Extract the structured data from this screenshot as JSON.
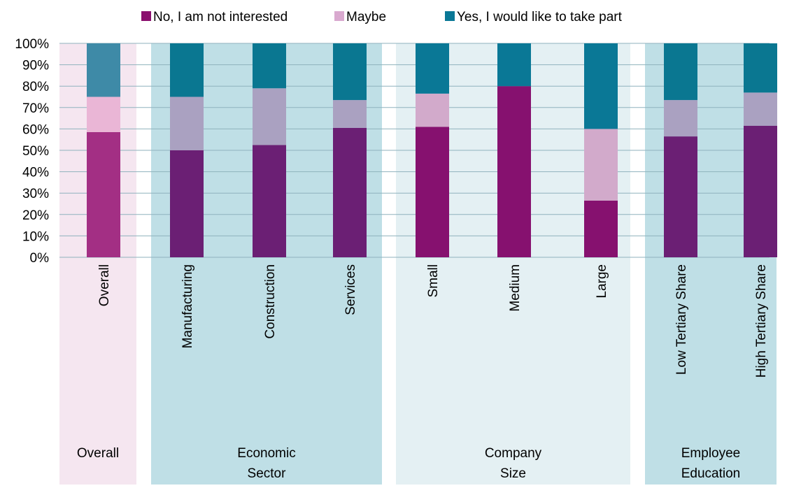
{
  "chart_data": {
    "type": "bar",
    "stacked": true,
    "y_unit": "percent",
    "ylim": [
      0,
      100
    ],
    "yticks": [
      "0%",
      "10%",
      "20%",
      "30%",
      "40%",
      "50%",
      "60%",
      "70%",
      "80%",
      "90%",
      "100%"
    ],
    "categories": [
      "Overall",
      "Manufacturing",
      "Construction",
      "Services",
      "Small",
      "Medium",
      "Large",
      "Low Tertiary Share",
      "High Tertiary Share"
    ],
    "groups": [
      {
        "label_line1": "Overall",
        "label_line2": "",
        "members": [
          "Overall"
        ],
        "band_color": "#f5e6f0"
      },
      {
        "label_line1": "Economic",
        "label_line2": "Sector",
        "members": [
          "Manufacturing",
          "Construction",
          "Services"
        ],
        "band_color": "#bfdfe6"
      },
      {
        "label_line1": "Company",
        "label_line2": "Size",
        "members": [
          "Small",
          "Medium",
          "Large"
        ],
        "band_color": "#e4f0f3"
      },
      {
        "label_line1": "Employee",
        "label_line2": "Education",
        "members": [
          "Low Tertiary Share",
          "High Tertiary Share"
        ],
        "band_color": "#bfdfe6"
      }
    ],
    "series": [
      {
        "name": "No, I am not interested",
        "legend_color": "#8a0f6e",
        "values": [
          58.5,
          50,
          52.5,
          60.5,
          61,
          80,
          26.5,
          56.5,
          61.5
        ],
        "colors": [
          "#a32f84",
          "#6b1f74",
          "#6b1f74",
          "#6b1f74",
          "#86116f",
          "#86116f",
          "#86116f",
          "#6b1f74",
          "#6b1f74"
        ]
      },
      {
        "name": "Maybe",
        "legend_color": "#d9a9cf",
        "values": [
          16.5,
          25,
          26.5,
          13,
          15.5,
          0,
          33.5,
          17,
          15.5
        ],
        "colors": [
          "#eab6d6",
          "#aaa1c1",
          "#aaa1c1",
          "#aaa1c1",
          "#d2aacb",
          "#d2aacb",
          "#d2aacb",
          "#aaa1c1",
          "#aaa1c1"
        ]
      },
      {
        "name": "Yes,  I would like to take part",
        "legend_color": "#0a7896",
        "values": [
          25,
          25,
          21,
          26.5,
          23.5,
          20,
          40,
          26.5,
          23
        ],
        "colors": [
          "#3e8aa7",
          "#0a7791",
          "#0a7791",
          "#0a7791",
          "#0a7896",
          "#0a7896",
          "#0a7896",
          "#0a7791",
          "#0a7791"
        ]
      }
    ],
    "gridlines": true,
    "legend_position": "top"
  }
}
